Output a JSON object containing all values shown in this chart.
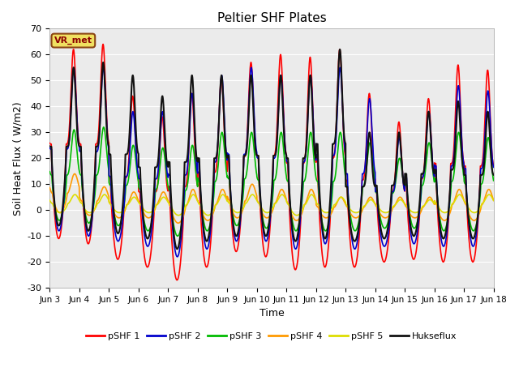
{
  "title": "Peltier SHF Plates",
  "xlabel": "Time",
  "ylabel": "Soil Heat Flux ( W/m2)",
  "ylim": [
    -30,
    70
  ],
  "xlim_days": [
    3,
    18
  ],
  "annotation": "VR_met",
  "plot_bgcolor": "#ebebeb",
  "fig_bgcolor": "#ffffff",
  "grid_color": "#ffffff",
  "series_colors": {
    "pSHF 1": "#ff0000",
    "pSHF 2": "#0000cc",
    "pSHF 3": "#00bb00",
    "pSHF 4": "#ff9900",
    "pSHF 5": "#dddd00",
    "Hukseflux": "#111111"
  },
  "series_linewidths": {
    "pSHF 1": 1.2,
    "pSHF 2": 1.2,
    "pSHF 3": 1.2,
    "pSHF 4": 1.2,
    "pSHF 5": 1.2,
    "Hukseflux": 1.5
  },
  "xtick_labels": [
    "Jun 3",
    "Jun 4",
    "Jun 5",
    "Jun 6",
    "Jun 7",
    "Jun 8",
    "Jun 9",
    "Jun 10",
    "Jun 11",
    "Jun 12",
    "Jun 13",
    "Jun 14",
    "Jun 15",
    "Jun 16",
    "Jun 17",
    "Jun 18"
  ],
  "ytick_values": [
    -30,
    -20,
    -10,
    0,
    10,
    20,
    30,
    40,
    50,
    60,
    70
  ],
  "day_peaks_pshf1": [
    62,
    64,
    44,
    36,
    45,
    51,
    57,
    60,
    59,
    62,
    45,
    34,
    43,
    56,
    54
  ],
  "day_mins_pshf1": [
    -11,
    -13,
    -19,
    -22,
    -27,
    -22,
    -16,
    -18,
    -23,
    -22,
    -22,
    -20,
    -19,
    -20,
    -20
  ],
  "day_peaks_pshf2": [
    55,
    55,
    38,
    38,
    45,
    52,
    55,
    52,
    52,
    55,
    43,
    28,
    38,
    48,
    46
  ],
  "day_mins_pshf2": [
    -8,
    -10,
    -12,
    -14,
    -18,
    -15,
    -12,
    -12,
    -15,
    -13,
    -15,
    -14,
    -13,
    -14,
    -14
  ],
  "day_peaks_pshf3": [
    31,
    32,
    25,
    24,
    25,
    30,
    30,
    30,
    30,
    30,
    26,
    20,
    26,
    30,
    28
  ],
  "day_mins_pshf3": [
    -4,
    -5,
    -6,
    -8,
    -10,
    -8,
    -6,
    -7,
    -8,
    -8,
    -8,
    -7,
    -7,
    -8,
    -8
  ],
  "day_peaks_pshf4": [
    14,
    9,
    7,
    7,
    8,
    8,
    10,
    8,
    8,
    5,
    5,
    5,
    5,
    8,
    8
  ],
  "day_mins_pshf4": [
    -1,
    -2,
    -3,
    -3,
    -5,
    -4,
    -3,
    -3,
    -4,
    -3,
    -3,
    -3,
    -3,
    -4,
    -4
  ],
  "day_peaks_pshf5": [
    6,
    6,
    5,
    5,
    6,
    6,
    6,
    6,
    6,
    5,
    4,
    4,
    4,
    6,
    6
  ],
  "day_mins_pshf5": [
    -1,
    -1,
    -1,
    -1,
    -2,
    -2,
    -1,
    -1,
    -2,
    -1,
    -1,
    -1,
    -1,
    -1,
    -1
  ],
  "day_peaks_huk": [
    55,
    57,
    52,
    44,
    52,
    52,
    52,
    52,
    52,
    62,
    30,
    30,
    38,
    42,
    38
  ],
  "day_mins_huk": [
    -6,
    -8,
    -9,
    -11,
    -15,
    -12,
    -10,
    -10,
    -12,
    -11,
    -12,
    -11,
    -10,
    -11,
    -11
  ]
}
